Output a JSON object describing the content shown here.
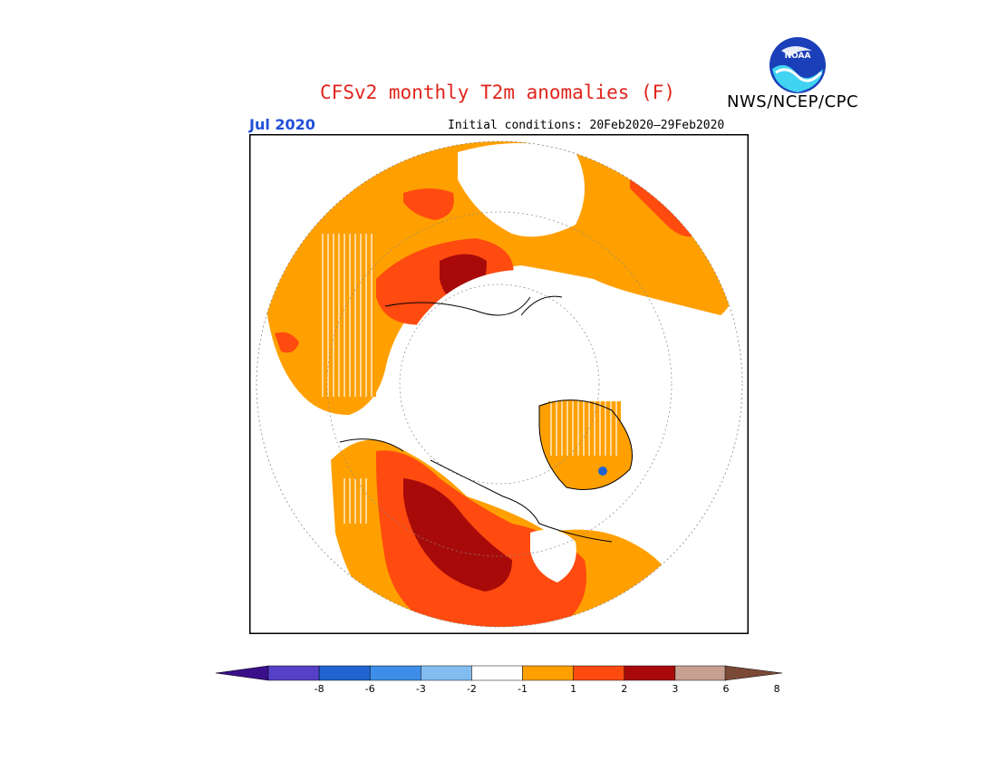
{
  "header": {
    "title": "CFSv2 monthly T2m anomalies (F)",
    "agency": "NWS/NCEP/CPC",
    "logo_text": "NOAA",
    "month_label": "Jul 2020",
    "initial_conditions": "Initial conditions: 20Feb2020–29Feb2020"
  },
  "map": {
    "projection": "north polar stereographic",
    "region": "Northern Hemisphere",
    "coastline_color": "#000000"
  },
  "legend": {
    "levels": [
      "-8",
      "-6",
      "-3",
      "-2",
      "-1",
      "1",
      "2",
      "3",
      "6",
      "8"
    ],
    "colors": [
      "#3a0f8a",
      "#5640c8",
      "#1f64d0",
      "#3d8ee8",
      "#82bdf2",
      "#ffffff",
      "#ffa000",
      "#ff4a10",
      "#a80a0a",
      "#c8a091",
      "#7a4a36"
    ]
  }
}
